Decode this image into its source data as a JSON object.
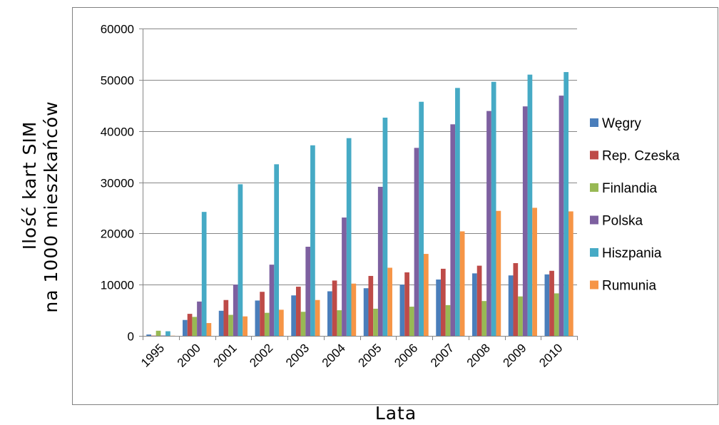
{
  "chart_data": {
    "type": "bar",
    "categories": [
      "1995",
      "2000",
      "2001",
      "2002",
      "2003",
      "2004",
      "2005",
      "2006",
      "2007",
      "2008",
      "2009",
      "2010"
    ],
    "series": [
      {
        "name": "Węgry",
        "color": "#4a7ebb",
        "values": [
          260,
          3100,
          4900,
          6900,
          7900,
          8700,
          9300,
          10000,
          11000,
          12200,
          11800,
          12000
        ]
      },
      {
        "name": "Rep. Czeska",
        "color": "#be4b48",
        "values": [
          50,
          4300,
          7000,
          8600,
          9600,
          10800,
          11700,
          12400,
          13100,
          13700,
          14200,
          12700
        ]
      },
      {
        "name": "Finlandia",
        "color": "#98b954",
        "values": [
          1000,
          3700,
          4100,
          4500,
          4700,
          5000,
          5300,
          5700,
          6000,
          6800,
          7700,
          8300
        ]
      },
      {
        "name": "Polska",
        "color": "#7d60a0",
        "values": [
          70,
          6700,
          10000,
          13900,
          17400,
          23100,
          29100,
          36700,
          41300,
          43900,
          44800,
          46900
        ]
      },
      {
        "name": "Hiszpania",
        "color": "#46aac5",
        "values": [
          900,
          24200,
          29600,
          33500,
          37200,
          38600,
          42600,
          45700,
          48400,
          49600,
          51000,
          51500
        ]
      },
      {
        "name": "Rumunia",
        "color": "#f69546",
        "values": [
          30,
          2500,
          3800,
          5100,
          7000,
          10200,
          13300,
          16000,
          20400,
          24400,
          25000,
          24300
        ]
      }
    ],
    "ylim": [
      0,
      60000
    ],
    "yticks": [
      0,
      10000,
      20000,
      30000,
      40000,
      50000,
      60000
    ],
    "ylabel_lines": [
      "Ilość kart SIM",
      "na 1000 mieszkańców"
    ],
    "xlabel": "Lata",
    "grid": true,
    "legend": "right"
  }
}
